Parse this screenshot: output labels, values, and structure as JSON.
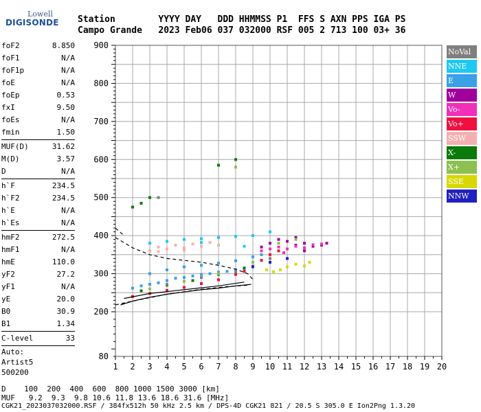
{
  "logo": {
    "top": "Lowell",
    "main": "DIGISONDE"
  },
  "header": {
    "line1": "Station        YYYY DAY   DDD HHMMSS P1  FFS S AXN PPS IGA PS",
    "line2": "Campo Grande   2023 Feb06 037 032000 RSF 005 2 713 100 03+ 36"
  },
  "params": {
    "group1": [
      {
        "label": "foF2",
        "value": "8.850"
      },
      {
        "label": "foF1",
        "value": "N/A"
      },
      {
        "label": "foF1p",
        "value": "N/A"
      },
      {
        "label": "foE",
        "value": "N/A"
      },
      {
        "label": "foEp",
        "value": "0.53"
      },
      {
        "label": "fxI",
        "value": "9.50"
      },
      {
        "label": "foEs",
        "value": "N/A"
      },
      {
        "label": "fmin",
        "value": "1.50"
      }
    ],
    "group2": [
      {
        "label": "MUF(D)",
        "value": "31.62"
      },
      {
        "label": "M(D)",
        "value": "3.57"
      },
      {
        "label": "D",
        "value": "N/A"
      }
    ],
    "group3": [
      {
        "label": "h`F",
        "value": "234.5"
      },
      {
        "label": "h`F2",
        "value": "234.5"
      },
      {
        "label": "h`E",
        "value": "N/A"
      },
      {
        "label": "h`Es",
        "value": "N/A"
      }
    ],
    "group4": [
      {
        "label": "hmF2",
        "value": "272.5"
      },
      {
        "label": "hmF1",
        "value": "N/A"
      },
      {
        "label": "hmE",
        "value": "110.0"
      },
      {
        "label": "yF2",
        "value": "27.2"
      },
      {
        "label": "yF1",
        "value": "N/A"
      },
      {
        "label": "yE",
        "value": "20.0"
      },
      {
        "label": "B0",
        "value": "30.9"
      },
      {
        "label": "B1",
        "value": "1.34"
      }
    ],
    "group5": [
      {
        "label": "C-level",
        "value": "33"
      }
    ],
    "auto": [
      "Auto:",
      "Artist5",
      "500200"
    ]
  },
  "legend": [
    {
      "name": "NoVal",
      "color": "#7f7f7f"
    },
    {
      "name": "NNE",
      "color": "#1ec8f0"
    },
    {
      "name": "E",
      "color": "#3aa0e8"
    },
    {
      "name": "W",
      "color": "#a0009c"
    },
    {
      "name": "Vo-",
      "color": "#f030b8"
    },
    {
      "name": "Vo+",
      "color": "#f01040"
    },
    {
      "name": "SSW",
      "color": "#f4b0b0"
    },
    {
      "name": "X-",
      "color": "#0a7a0a"
    },
    {
      "name": "X+",
      "color": "#8cc050"
    },
    {
      "name": "SSE",
      "color": "#d8d800"
    },
    {
      "name": "NNW",
      "color": "#2020c0"
    }
  ],
  "footer": {
    "line1": "D    100  200  400  600  800 1000 1500 3000 [km]",
    "line2": "MUF   9.2  9.3  9.8 10.6 11.8 13.6 18.6 31.6 [MHz]",
    "line3": "CGK21_2023037032000.RSF / 384fx512h 50 kHz 2.5 km / DPS-4D CGK21 821 / 20.5 S 305.0 E Ion2Png 1.3.20"
  },
  "chart_data": {
    "type": "scatter",
    "xlim": [
      1,
      20
    ],
    "ylim": [
      80,
      900
    ],
    "x_ticks": [
      1,
      2,
      3,
      4,
      5,
      6,
      7,
      8,
      9,
      10,
      11,
      12,
      13,
      14,
      15,
      16,
      17,
      18,
      19,
      20
    ],
    "y_ticks": [
      80,
      200,
      300,
      400,
      500,
      600,
      700,
      800,
      900
    ],
    "grid": true,
    "series": [
      {
        "name": "E",
        "color": "#3aa0e8",
        "points": [
          [
            2.0,
            262
          ],
          [
            2.5,
            268
          ],
          [
            3.0,
            272
          ],
          [
            3.5,
            276
          ],
          [
            4.0,
            282
          ],
          [
            4.5,
            288
          ],
          [
            5.0,
            290
          ],
          [
            5.5,
            294
          ],
          [
            6.0,
            298
          ],
          [
            6.5,
            300
          ],
          [
            7.0,
            304
          ],
          [
            7.5,
            306
          ],
          [
            8.0,
            310
          ],
          [
            8.5,
            312
          ],
          [
            3.0,
            300
          ],
          [
            4.0,
            310
          ],
          [
            5.0,
            318
          ],
          [
            6.0,
            322
          ],
          [
            7.0,
            328
          ],
          [
            8.0,
            334
          ],
          [
            9.0,
            344
          ],
          [
            9.5,
            350
          ]
        ]
      },
      {
        "name": "NNE",
        "color": "#1ec8f0",
        "points": [
          [
            3.0,
            380
          ],
          [
            4.0,
            385
          ],
          [
            5.0,
            390
          ],
          [
            6.0,
            392
          ],
          [
            7.0,
            395
          ],
          [
            8.0,
            398
          ],
          [
            9.0,
            400
          ],
          [
            10.0,
            410
          ],
          [
            6.0,
            382
          ],
          [
            8.5,
            372
          ]
        ]
      },
      {
        "name": "SSW",
        "color": "#f4b0b0",
        "points": [
          [
            3.0,
            360
          ],
          [
            3.5,
            370
          ],
          [
            4.0,
            365
          ],
          [
            4.5,
            375
          ],
          [
            5.0,
            368
          ],
          [
            5.5,
            378
          ],
          [
            6.0,
            372
          ],
          [
            6.5,
            382
          ],
          [
            7.0,
            375
          ],
          [
            3.5,
            358
          ],
          [
            5.0,
            362
          ]
        ]
      },
      {
        "name": "Vo+",
        "color": "#f01040",
        "points": [
          [
            2.0,
            240
          ],
          [
            3.0,
            248
          ],
          [
            4.0,
            256
          ],
          [
            5.0,
            264
          ],
          [
            6.0,
            274
          ],
          [
            7.0,
            284
          ],
          [
            8.0,
            298
          ],
          [
            8.5,
            306
          ],
          [
            9.0,
            320
          ],
          [
            9.5,
            335
          ],
          [
            10.0,
            350
          ],
          [
            10.5,
            360
          ]
        ]
      },
      {
        "name": "W",
        "color": "#a0009c",
        "points": [
          [
            9.5,
            370
          ],
          [
            10.0,
            380
          ],
          [
            10.5,
            390
          ],
          [
            11.0,
            385
          ],
          [
            11.5,
            375
          ],
          [
            12.0,
            380
          ],
          [
            12.5,
            372
          ],
          [
            13.0,
            375
          ],
          [
            11.5,
            395
          ],
          [
            12.0,
            360
          ],
          [
            13.3,
            380
          ]
        ]
      },
      {
        "name": "Vo-",
        "color": "#f030b8",
        "points": [
          [
            9.5,
            360
          ],
          [
            10.0,
            365
          ],
          [
            10.5,
            370
          ],
          [
            11.0,
            365
          ],
          [
            11.5,
            372
          ],
          [
            12.0,
            368
          ],
          [
            12.5,
            376
          ],
          [
            13.0,
            378
          ],
          [
            10.8,
            355
          ]
        ]
      },
      {
        "name": "SSE",
        "color": "#d8d800",
        "points": [
          [
            9.8,
            310
          ],
          [
            10.2,
            305
          ],
          [
            10.6,
            310
          ],
          [
            11.0,
            318
          ],
          [
            11.5,
            325
          ],
          [
            12.0,
            320
          ],
          [
            12.3,
            330
          ]
        ]
      },
      {
        "name": "X-",
        "color": "#0a7a0a",
        "points": [
          [
            2.5,
            255
          ],
          [
            4.0,
            270
          ],
          [
            5.5,
            282
          ],
          [
            7.0,
            298
          ],
          [
            8.5,
            315
          ],
          [
            2.0,
            475
          ],
          [
            2.5,
            485
          ],
          [
            3.0,
            500
          ],
          [
            7.0,
            585
          ],
          [
            8.0,
            600
          ]
        ]
      },
      {
        "name": "X+",
        "color": "#8cc050",
        "points": [
          [
            3.0,
            260
          ],
          [
            5.0,
            280
          ],
          [
            7.0,
            300
          ],
          [
            9.0,
            330
          ],
          [
            8.0,
            580
          ],
          [
            10.5,
            380
          ],
          [
            11.5,
            390
          ]
        ]
      },
      {
        "name": "NoVal",
        "color": "#7f7f7f",
        "points": [
          [
            4.0,
            272
          ],
          [
            6.0,
            290
          ],
          [
            8.0,
            305
          ],
          [
            9.0,
            320
          ],
          [
            10.0,
            340
          ],
          [
            3.5,
            500
          ]
        ]
      },
      {
        "name": "NNW",
        "color": "#2020c0",
        "points": [
          [
            9.0,
            318
          ],
          [
            10.0,
            330
          ],
          [
            11.0,
            340
          ]
        ]
      }
    ],
    "traces": {
      "profile_solid": [
        [
          1.3,
          218
        ],
        [
          2,
          228
        ],
        [
          3,
          238
        ],
        [
          4,
          246
        ],
        [
          5,
          252
        ],
        [
          6,
          258
        ],
        [
          7,
          262
        ],
        [
          8,
          268
        ],
        [
          8.9,
          272
        ]
      ],
      "profile_solid_x": [
        [
          1.5,
          235
        ],
        [
          3,
          248
        ],
        [
          5,
          258
        ],
        [
          7,
          268
        ],
        [
          8.5,
          278
        ]
      ],
      "profile_dashed": [
        [
          1,
          218
        ],
        [
          2,
          228
        ],
        [
          4,
          246
        ],
        [
          6,
          259
        ],
        [
          7.5,
          266
        ],
        [
          8.8,
          270
        ]
      ],
      "iono_dashed_upper": [
        [
          1,
          395
        ],
        [
          2,
          368
        ],
        [
          3,
          350
        ],
        [
          4,
          340
        ],
        [
          5,
          335
        ],
        [
          6,
          330
        ],
        [
          7,
          322
        ],
        [
          8,
          312
        ],
        [
          8.7,
          300
        ],
        [
          9.0,
          285
        ]
      ],
      "iono_dashed_upper2": [
        [
          1,
          420
        ],
        [
          1.5,
          400
        ]
      ]
    }
  }
}
